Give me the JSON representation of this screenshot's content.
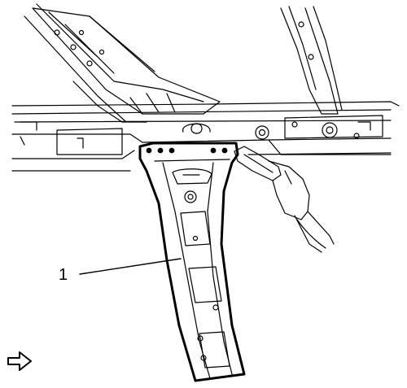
{
  "diagram": {
    "callouts": [
      {
        "label": "1"
      }
    ],
    "nav_arrow_icon": "right-arrow-outline-icon",
    "colors": {
      "stroke": "#000000",
      "background": "#ffffff"
    }
  }
}
